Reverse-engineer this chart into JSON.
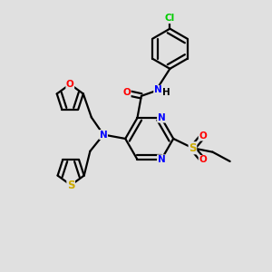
{
  "bg_color": "#e0e0e0",
  "bond_color": "#000000",
  "line_width": 1.6,
  "atom_colors": {
    "N": "#0000ff",
    "O": "#ff0000",
    "S": "#ccaa00",
    "Cl": "#00cc00",
    "C": "#000000",
    "H": "#000000"
  },
  "font_size": 7.5
}
